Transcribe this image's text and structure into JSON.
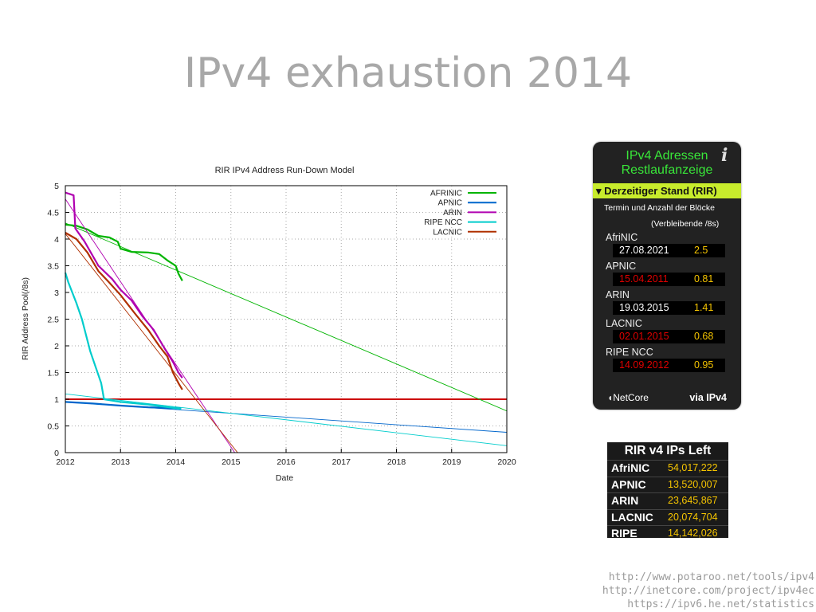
{
  "slide": {
    "title": "IPv4 exhaustion 2014"
  },
  "chart_data": {
    "type": "line",
    "title": "RIR IPv4 Address Run-Down Model",
    "xlabel": "Date",
    "ylabel": "RIR Address Pool(/8s)",
    "xlim": [
      2012,
      2020
    ],
    "ylim": [
      0,
      5
    ],
    "xticks": [
      "2012",
      "2013",
      "2014",
      "2015",
      "2016",
      "2017",
      "2018",
      "2019",
      "2020"
    ],
    "yticks": [
      "0",
      "0.5",
      "1",
      "1.5",
      "2",
      "2.5",
      "3",
      "3.5",
      "4",
      "4.5",
      "5"
    ],
    "grid": true,
    "legend_position": "top-right",
    "threshold": {
      "value": 1,
      "color": "#cc0000"
    },
    "series": [
      {
        "name": "AFRINIC",
        "color": "#00b400",
        "actual": [
          [
            2012,
            4.27
          ],
          [
            2012.2,
            4.25
          ],
          [
            2012.4,
            4.18
          ],
          [
            2012.6,
            4.06
          ],
          [
            2012.8,
            4.03
          ],
          [
            2012.95,
            3.95
          ],
          [
            2013.0,
            3.82
          ],
          [
            2013.2,
            3.76
          ],
          [
            2013.5,
            3.75
          ],
          [
            2013.7,
            3.72
          ],
          [
            2013.85,
            3.6
          ],
          [
            2014.0,
            3.5
          ],
          [
            2014.05,
            3.35
          ],
          [
            2014.12,
            3.22
          ]
        ],
        "model": [
          [
            2012,
            4.3
          ],
          [
            2020,
            0.78
          ]
        ]
      },
      {
        "name": "APNIC",
        "color": "#0066cc",
        "actual": [
          [
            2012,
            0.95
          ],
          [
            2012.5,
            0.92
          ],
          [
            2013,
            0.88
          ],
          [
            2013.5,
            0.85
          ],
          [
            2014.1,
            0.83
          ]
        ],
        "model": [
          [
            2012,
            0.95
          ],
          [
            2020,
            0.38
          ]
        ]
      },
      {
        "name": "ARIN",
        "color": "#b000b0",
        "actual": [
          [
            2012,
            4.87
          ],
          [
            2012.15,
            4.82
          ],
          [
            2012.18,
            4.2
          ],
          [
            2012.35,
            3.95
          ],
          [
            2012.6,
            3.5
          ],
          [
            2012.85,
            3.25
          ],
          [
            2013.0,
            3.05
          ],
          [
            2013.2,
            2.85
          ],
          [
            2013.4,
            2.55
          ],
          [
            2013.6,
            2.3
          ],
          [
            2013.8,
            1.95
          ],
          [
            2013.95,
            1.7
          ],
          [
            2014.05,
            1.5
          ],
          [
            2014.12,
            1.4
          ]
        ],
        "model": [
          [
            2012,
            4.75
          ],
          [
            2015.07,
            0
          ]
        ]
      },
      {
        "name": "RIPE NCC",
        "color": "#00cccc",
        "actual": [
          [
            2012,
            3.37
          ],
          [
            2012.05,
            3.2
          ],
          [
            2012.2,
            2.8
          ],
          [
            2012.3,
            2.5
          ],
          [
            2012.45,
            1.9
          ],
          [
            2012.55,
            1.6
          ],
          [
            2012.65,
            1.3
          ],
          [
            2012.7,
            1.0
          ],
          [
            2013,
            0.95
          ],
          [
            2013.5,
            0.9
          ],
          [
            2014.1,
            0.82
          ]
        ],
        "model": [
          [
            2012,
            1.1
          ],
          [
            2020,
            0.13
          ]
        ]
      },
      {
        "name": "LACNIC",
        "color": "#b03000",
        "actual": [
          [
            2012,
            4.12
          ],
          [
            2012.2,
            4.0
          ],
          [
            2012.4,
            3.75
          ],
          [
            2012.6,
            3.4
          ],
          [
            2012.8,
            3.18
          ],
          [
            2013.0,
            2.95
          ],
          [
            2013.25,
            2.62
          ],
          [
            2013.5,
            2.3
          ],
          [
            2013.7,
            2.0
          ],
          [
            2013.85,
            1.8
          ],
          [
            2013.95,
            1.5
          ],
          [
            2014.05,
            1.3
          ],
          [
            2014.12,
            1.18
          ]
        ],
        "model": [
          [
            2012,
            4.1
          ],
          [
            2015.12,
            0
          ]
        ]
      }
    ]
  },
  "widget": {
    "title_line1": "IPv4 Adressen",
    "title_line2": "Restlaufanzeige",
    "info_icon": "info-icon",
    "status_label": "▾ Derzeitiger Stand (RIR)",
    "subtitle1": "Termin und Anzahl der Blöcke",
    "subtitle2": "(Verbleibende /8s)",
    "rows": [
      {
        "name": "AfriNIC",
        "date": "27.08.2021",
        "blocks": "2.5",
        "date_color": "#ffffff"
      },
      {
        "name": "APNIC",
        "date": "15.04.2011",
        "blocks": "0.81",
        "date_color": "#e00000"
      },
      {
        "name": "ARIN",
        "date": "19.03.2015",
        "blocks": "1.41",
        "date_color": "#ffffff"
      },
      {
        "name": "LACNIC",
        "date": "02.01.2015",
        "blocks": "0.68",
        "date_color": "#e00000"
      },
      {
        "name": "RIPE NCC",
        "date": "14.09.2012",
        "blocks": "0.95",
        "date_color": "#e00000"
      }
    ],
    "logo": "NetCore",
    "via": "via IPv4"
  },
  "ips_left": {
    "title": "RIR v4 IPs Left",
    "rows": [
      {
        "name": "AfriNIC",
        "value": "54,017,222"
      },
      {
        "name": "APNIC",
        "value": "13,520,007"
      },
      {
        "name": "ARIN",
        "value": "23,645,867"
      },
      {
        "name": "LACNIC",
        "value": "20,074,704"
      },
      {
        "name": "RIPE",
        "value": "14,142,026"
      }
    ]
  },
  "sources": [
    "http://www.potaroo.net/tools/ipv4",
    "http://inetcore.com/project/ipv4ec",
    "https://ipv6.he.net/statistics"
  ]
}
